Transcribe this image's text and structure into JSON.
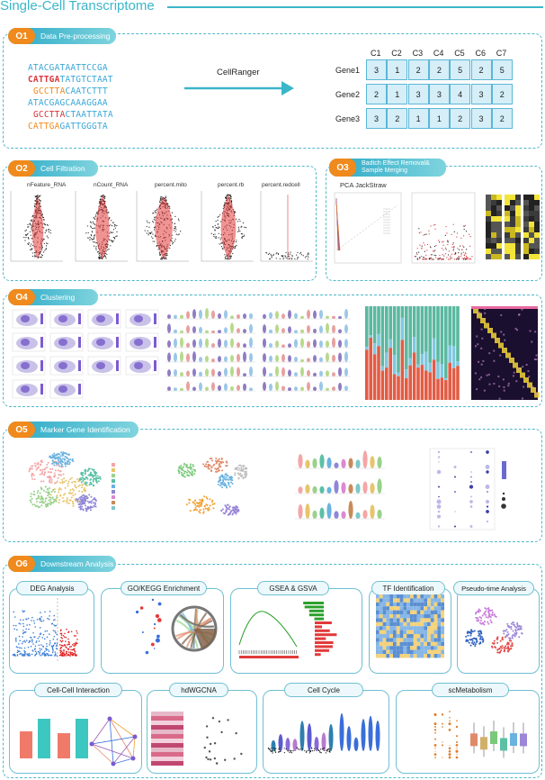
{
  "title": "Single-Cell Transcriptome",
  "sections": [
    {
      "num": "O1",
      "label": "Data Pre-processing"
    },
    {
      "num": "O2",
      "label": "Cell Filtration"
    },
    {
      "num": "O3",
      "label": "Badtch Effect Removal& Sample Merging"
    },
    {
      "num": "O4",
      "label": "Clustering"
    },
    {
      "num": "O5",
      "label": "Marker Gene Identification"
    },
    {
      "num": "O6",
      "label": "Downstream Analysis"
    }
  ],
  "preprocessing": {
    "sequences": [
      {
        "a": "ATACGA",
        "b": "TAATTCCGA",
        "color": "#3aa7d6"
      },
      {
        "a": "CATTGA",
        "b": "TATGTCTAAT",
        "color": "#d9343a"
      },
      {
        "a": "GCCTTA",
        "b": "CAATCTTT",
        "color": "#f08a1c"
      },
      {
        "a": "ATACGA",
        "b": "GCAAAGGAA",
        "color": "#3aa7d6"
      },
      {
        "a": "GCCTTA",
        "b": "CTAATTATA",
        "color": "#d9343a"
      },
      {
        "a": "CATTGA",
        "b": "GATTGGGTA",
        "color": "#f08a1c"
      }
    ],
    "tool": "CellRanger",
    "columns": [
      "C1",
      "C2",
      "C3",
      "C4",
      "C5",
      "C6",
      "C7"
    ],
    "rows": [
      {
        "gene": "Gene1",
        "values": [
          3,
          1,
          2,
          2,
          5,
          2,
          5
        ]
      },
      {
        "gene": "Gene2",
        "values": [
          2,
          1,
          3,
          3,
          4,
          3,
          2
        ]
      },
      {
        "gene": "Gene3",
        "values": [
          3,
          2,
          1,
          1,
          2,
          3,
          2
        ]
      }
    ]
  },
  "filtration": {
    "metrics": [
      "nFeature_RNA",
      "nCount_RNA",
      "percent.mito",
      "percent.rb",
      "percent.redcell"
    ]
  },
  "batch": {
    "plot_label": "PCA JackStraw"
  },
  "downstream": {
    "boxes": [
      "DEG Analysis",
      "GO/KEGG Enrichment",
      "GSEA & GSVA",
      "TF Identification",
      "Pseudo-time Analysis",
      "Cell-Cell Interaction",
      "hdWGCNA",
      "Cell Cycle",
      "scMetabolism"
    ]
  },
  "colors": {
    "accent": "#3bb6c9",
    "badge": "#f08a1c",
    "cell_fill": "#d5eef8"
  }
}
